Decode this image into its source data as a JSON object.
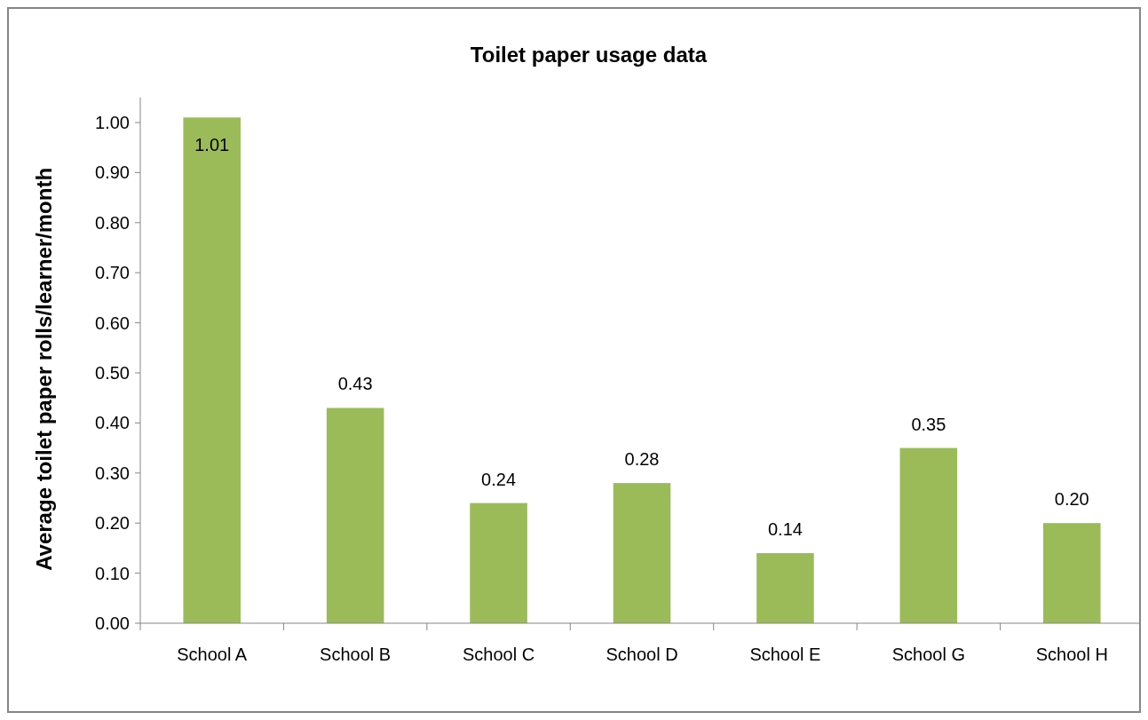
{
  "chart_data": {
    "type": "bar",
    "title": "Toilet paper usage data",
    "ylabel": "Average toilet paper rolls/learner/month",
    "categories": [
      "School A",
      "School B",
      "School C",
      "School D",
      "School E",
      "School G",
      "School H"
    ],
    "values": [
      1.01,
      0.43,
      0.24,
      0.28,
      0.14,
      0.35,
      0.2
    ],
    "color": "#9bbb59",
    "ylim": [
      0,
      1.05
    ],
    "yticks": [
      {
        "value": 0,
        "label": "0.00"
      },
      {
        "value": 0.1,
        "label": "0.10"
      },
      {
        "value": 0.2,
        "label": "0.20"
      },
      {
        "value": 0.3,
        "label": "0.30"
      },
      {
        "value": 0.4,
        "label": "0.40"
      },
      {
        "value": 0.5,
        "label": "0.50"
      },
      {
        "value": 0.6,
        "label": "0.60"
      },
      {
        "value": 0.7,
        "label": "0.70"
      },
      {
        "value": 0.8,
        "label": "0.80"
      },
      {
        "value": 0.9,
        "label": "0.90"
      },
      {
        "value": 1,
        "label": "1.00"
      }
    ],
    "value_labels": [
      "1.01",
      "0.43",
      "0.24",
      "0.28",
      "0.14",
      "0.35",
      "0.20"
    ],
    "grid": false
  }
}
